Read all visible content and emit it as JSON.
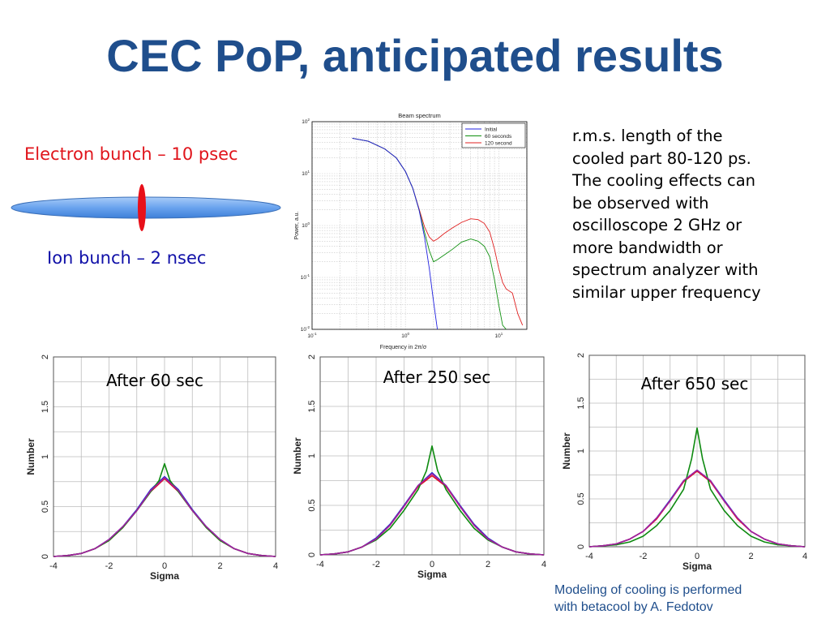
{
  "title": "CEC PoP, anticipated results",
  "electron_label": "Electron bunch – 10 psec",
  "ion_label": "Ion bunch – 2 nsec",
  "notes_lines": [
    "r.m.s. length of the",
    "cooled part 80-120 ps.",
    "The cooling effects can",
    "be observed with",
    "oscilloscope 2 GHz or",
    "more bandwidth or",
    "spectrum analyzer with",
    "similar upper frequency"
  ],
  "credit_lines": [
    "Modeling of cooling is performed",
    "with betacool by A. Fedotov"
  ],
  "colors": {
    "title": "#1f4e8c",
    "electron": "#e0141b",
    "ion": "#1010a8",
    "bunch_fill": "#6aa3ee",
    "cooling_spike": "#e8101a"
  },
  "chart_data": [
    {
      "type": "line",
      "title": "Beam spectrum",
      "xlabel": "Frequency in 2π/σ",
      "ylabel": "Power, a.u.",
      "x_scale": "log",
      "y_scale": "log",
      "xlim": [
        0.1,
        20
      ],
      "ylim": [
        0.01,
        100
      ],
      "x_ticks": [
        {
          "v": 0.1,
          "b": "10",
          "e": "-1"
        },
        {
          "v": 1,
          "b": "10",
          "e": "0"
        },
        {
          "v": 10,
          "b": "10",
          "e": "1"
        }
      ],
      "y_ticks": [
        {
          "v": 0.01,
          "b": "10",
          "e": "-2"
        },
        {
          "v": 0.1,
          "b": "10",
          "e": "-1"
        },
        {
          "v": 1,
          "b": "10",
          "e": "0"
        },
        {
          "v": 10,
          "b": "10",
          "e": "1"
        },
        {
          "v": 100,
          "b": "10",
          "e": "2"
        }
      ],
      "grid": true,
      "legend": "top-right",
      "series": [
        {
          "name": "Initial",
          "color": "#2020e0",
          "x": [
            0.27,
            0.4,
            0.6,
            0.8,
            1.0,
            1.2,
            1.4,
            1.6,
            1.8,
            2.0,
            2.2
          ],
          "y": [
            48,
            42,
            30,
            20,
            11,
            5.2,
            2.0,
            0.6,
            0.15,
            0.035,
            0.01
          ]
        },
        {
          "name": "60 seconds",
          "color": "#109010",
          "x": [
            0.27,
            0.4,
            0.6,
            0.8,
            1.0,
            1.2,
            1.4,
            1.6,
            1.8,
            2.0,
            2.2,
            2.6,
            3.2,
            4.0,
            5.0,
            6.0,
            7.0,
            8.0,
            9.0,
            10.0,
            11.0,
            12.0
          ],
          "y": [
            48,
            42,
            30,
            20,
            11,
            5.2,
            2.0,
            0.75,
            0.33,
            0.2,
            0.22,
            0.27,
            0.35,
            0.48,
            0.55,
            0.5,
            0.4,
            0.25,
            0.09,
            0.03,
            0.012,
            0.01
          ]
        },
        {
          "name": "120 second",
          "color": "#e02020",
          "x": [
            0.27,
            0.4,
            0.6,
            0.8,
            1.0,
            1.2,
            1.4,
            1.6,
            1.8,
            2.0,
            2.2,
            2.6,
            3.2,
            4.0,
            5.0,
            6.0,
            7.0,
            8.0,
            9.0,
            10.0,
            11.0,
            12.0,
            14.0,
            16.0,
            18.0
          ],
          "y": [
            48,
            42,
            30,
            20,
            11,
            5.2,
            2.1,
            0.95,
            0.6,
            0.5,
            0.55,
            0.7,
            0.9,
            1.15,
            1.35,
            1.3,
            1.1,
            0.75,
            0.35,
            0.15,
            0.08,
            0.06,
            0.05,
            0.02,
            0.012
          ]
        }
      ]
    },
    {
      "type": "line",
      "annotation": "After 60 sec",
      "xlabel": "Sigma",
      "ylabel": "Number",
      "xlim": [
        -4,
        4
      ],
      "ylim": [
        0,
        2
      ],
      "x_ticks": [
        -4,
        -2,
        0,
        2,
        4
      ],
      "y_ticks": [
        0,
        0.5,
        1,
        1.5,
        2
      ],
      "grid": true,
      "series": [
        {
          "color": "#2030d0",
          "x": [
            -4,
            -3.5,
            -3,
            -2.5,
            -2,
            -1.5,
            -1,
            -0.5,
            0,
            0.5,
            1,
            1.5,
            2,
            2.5,
            3,
            3.5,
            4
          ],
          "y": [
            0,
            0.01,
            0.03,
            0.08,
            0.17,
            0.3,
            0.47,
            0.67,
            0.8,
            0.67,
            0.47,
            0.3,
            0.17,
            0.08,
            0.03,
            0.01,
            0
          ]
        },
        {
          "color": "#e01020",
          "x": [
            -4,
            -3.5,
            -3,
            -2.5,
            -2,
            -1.5,
            -1,
            -0.5,
            0,
            0.5,
            1,
            1.5,
            2,
            2.5,
            3,
            3.5,
            4
          ],
          "y": [
            0,
            0.01,
            0.03,
            0.08,
            0.16,
            0.29,
            0.46,
            0.65,
            0.78,
            0.65,
            0.46,
            0.29,
            0.16,
            0.08,
            0.03,
            0.01,
            0
          ]
        },
        {
          "color": "#0e8a10",
          "x": [
            -4,
            -3.5,
            -3,
            -2.5,
            -2,
            -1.5,
            -1,
            -0.5,
            -0.2,
            0,
            0.2,
            0.5,
            1,
            1.5,
            2,
            2.5,
            3,
            3.5,
            4
          ],
          "y": [
            0,
            0.01,
            0.03,
            0.08,
            0.16,
            0.29,
            0.46,
            0.65,
            0.76,
            0.93,
            0.76,
            0.65,
            0.46,
            0.29,
            0.16,
            0.08,
            0.03,
            0.01,
            0
          ]
        },
        {
          "color": "#a020a0",
          "x": [
            -4,
            -3.5,
            -3,
            -2.5,
            -2,
            -1.5,
            -1,
            -0.5,
            0,
            0.5,
            1,
            1.5,
            2,
            2.5,
            3,
            3.5,
            4
          ],
          "y": [
            0,
            0.01,
            0.03,
            0.08,
            0.17,
            0.3,
            0.46,
            0.66,
            0.79,
            0.66,
            0.46,
            0.3,
            0.17,
            0.08,
            0.03,
            0.01,
            0
          ]
        }
      ]
    },
    {
      "type": "line",
      "annotation": "After 250 sec",
      "xlabel": "Sigma",
      "ylabel": "Number",
      "xlim": [
        -4,
        4
      ],
      "ylim": [
        0,
        2
      ],
      "x_ticks": [
        -4,
        -2,
        0,
        2,
        4
      ],
      "y_ticks": [
        0,
        0.5,
        1,
        1.5,
        2
      ],
      "grid": true,
      "series": [
        {
          "color": "#2030d0",
          "x": [
            -4,
            -3.5,
            -3,
            -2.5,
            -2,
            -1.5,
            -1,
            -0.5,
            0,
            0.5,
            1,
            1.5,
            2,
            2.5,
            3,
            3.5,
            4
          ],
          "y": [
            0,
            0.01,
            0.03,
            0.08,
            0.17,
            0.31,
            0.5,
            0.7,
            0.83,
            0.7,
            0.5,
            0.31,
            0.17,
            0.08,
            0.03,
            0.01,
            0
          ]
        },
        {
          "color": "#e01020",
          "x": [
            -4,
            -3.5,
            -3,
            -2.5,
            -2,
            -1.5,
            -1,
            -0.5,
            0,
            0.5,
            1,
            1.5,
            2,
            2.5,
            3,
            3.5,
            4
          ],
          "y": [
            0,
            0.01,
            0.03,
            0.08,
            0.16,
            0.3,
            0.49,
            0.69,
            0.8,
            0.69,
            0.49,
            0.3,
            0.16,
            0.08,
            0.03,
            0.01,
            0
          ]
        },
        {
          "color": "#0e8a10",
          "x": [
            -4,
            -3.5,
            -3,
            -2.5,
            -2,
            -1.5,
            -1,
            -0.5,
            -0.2,
            0,
            0.2,
            0.5,
            1,
            1.5,
            2,
            2.5,
            3,
            3.5,
            4
          ],
          "y": [
            0,
            0.01,
            0.03,
            0.08,
            0.15,
            0.27,
            0.45,
            0.66,
            0.85,
            1.1,
            0.85,
            0.66,
            0.45,
            0.27,
            0.15,
            0.08,
            0.03,
            0.01,
            0
          ]
        },
        {
          "color": "#a020a0",
          "x": [
            -4,
            -3.5,
            -3,
            -2.5,
            -2,
            -1.5,
            -1,
            -0.5,
            0,
            0.5,
            1,
            1.5,
            2,
            2.5,
            3,
            3.5,
            4
          ],
          "y": [
            0,
            0.01,
            0.03,
            0.08,
            0.16,
            0.3,
            0.49,
            0.7,
            0.82,
            0.7,
            0.49,
            0.3,
            0.16,
            0.08,
            0.03,
            0.01,
            0
          ]
        }
      ]
    },
    {
      "type": "line",
      "annotation": "After 650 sec",
      "xlabel": "Sigma",
      "ylabel": "Number",
      "xlim": [
        -4,
        4
      ],
      "ylim": [
        0,
        2
      ],
      "x_ticks": [
        -4,
        -2,
        0,
        2,
        4
      ],
      "y_ticks": [
        0,
        0.5,
        1,
        1.5,
        2
      ],
      "grid": true,
      "series": [
        {
          "color": "#2030d0",
          "x": [
            -4,
            -3.5,
            -3,
            -2.5,
            -2,
            -1.5,
            -1,
            -0.5,
            0,
            0.5,
            1,
            1.5,
            2,
            2.5,
            3,
            3.5,
            4
          ],
          "y": [
            0,
            0.01,
            0.03,
            0.08,
            0.16,
            0.3,
            0.49,
            0.69,
            0.8,
            0.69,
            0.49,
            0.3,
            0.16,
            0.08,
            0.03,
            0.01,
            0
          ]
        },
        {
          "color": "#e01020",
          "x": [
            -4,
            -3.5,
            -3,
            -2.5,
            -2,
            -1.5,
            -1,
            -0.5,
            0,
            0.5,
            1,
            1.5,
            2,
            2.5,
            3,
            3.5,
            4
          ],
          "y": [
            0,
            0.01,
            0.03,
            0.08,
            0.16,
            0.29,
            0.48,
            0.68,
            0.79,
            0.68,
            0.48,
            0.29,
            0.16,
            0.08,
            0.03,
            0.01,
            0
          ]
        },
        {
          "color": "#0e8a10",
          "x": [
            -4,
            -3.5,
            -3,
            -2.5,
            -2,
            -1.5,
            -1,
            -0.5,
            -0.2,
            0,
            0.2,
            0.5,
            1,
            1.5,
            2,
            2.5,
            3,
            3.5,
            4
          ],
          "y": [
            0,
            0.01,
            0.02,
            0.05,
            0.11,
            0.22,
            0.38,
            0.6,
            0.92,
            1.24,
            0.92,
            0.6,
            0.38,
            0.22,
            0.11,
            0.05,
            0.02,
            0.01,
            0
          ]
        },
        {
          "color": "#a020a0",
          "x": [
            -4,
            -3.5,
            -3,
            -2.5,
            -2,
            -1.5,
            -1,
            -0.5,
            0,
            0.5,
            1,
            1.5,
            2,
            2.5,
            3,
            3.5,
            4
          ],
          "y": [
            0,
            0.01,
            0.03,
            0.08,
            0.16,
            0.3,
            0.48,
            0.69,
            0.8,
            0.69,
            0.48,
            0.3,
            0.16,
            0.08,
            0.03,
            0.01,
            0
          ]
        }
      ]
    }
  ]
}
